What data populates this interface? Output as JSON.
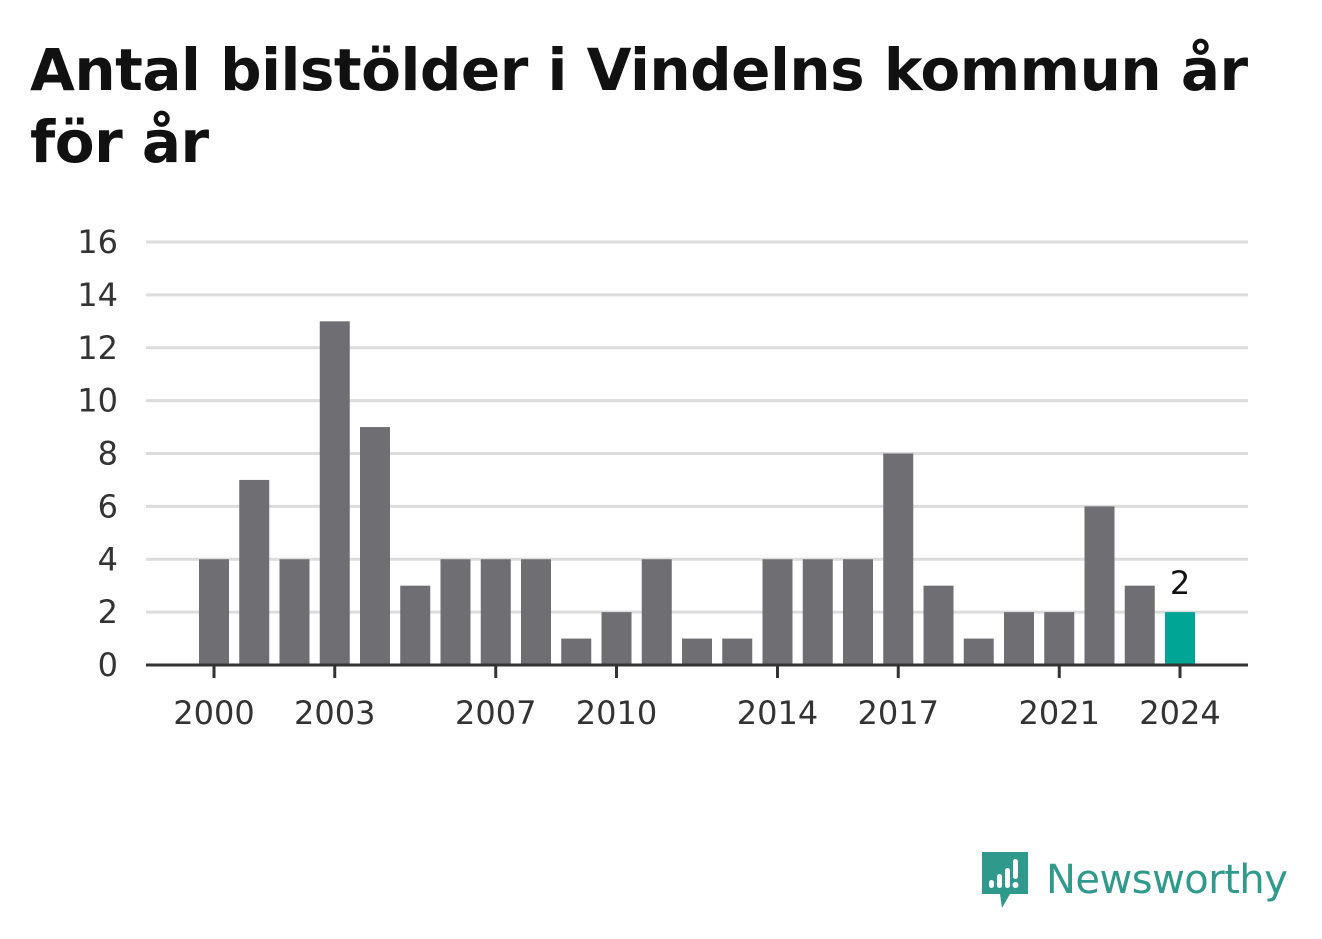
{
  "title": "Antal bilstölder i Vindelns kommun år för år",
  "brand": {
    "name": "Newsworthy",
    "logo_icon": "newsworthy-logo-icon",
    "color": "#2f9a8c"
  },
  "chart_data": {
    "type": "bar",
    "title": "Antal bilstölder i Vindelns kommun år för år",
    "xlabel": "",
    "ylabel": "",
    "categories": [
      2000,
      2001,
      2002,
      2003,
      2004,
      2005,
      2006,
      2007,
      2008,
      2009,
      2010,
      2011,
      2012,
      2013,
      2014,
      2015,
      2016,
      2017,
      2018,
      2019,
      2020,
      2021,
      2022,
      2023,
      2024
    ],
    "values": [
      4,
      7,
      4,
      13,
      9,
      3,
      4,
      4,
      4,
      1,
      2,
      4,
      1,
      1,
      4,
      4,
      4,
      8,
      3,
      1,
      2,
      2,
      6,
      3,
      2
    ],
    "ylim": [
      0,
      16
    ],
    "yticks": [
      0,
      2,
      4,
      6,
      8,
      10,
      12,
      14,
      16
    ],
    "xticks": [
      2000,
      2003,
      2007,
      2010,
      2014,
      2017,
      2021,
      2024
    ],
    "highlight": {
      "category": 2024,
      "label": "2"
    },
    "grid": true,
    "legend": "none",
    "colors": {
      "bar": "#6f6e73",
      "highlight": "#00a595",
      "grid": "#dcdcdc",
      "axis": "#333333"
    }
  }
}
